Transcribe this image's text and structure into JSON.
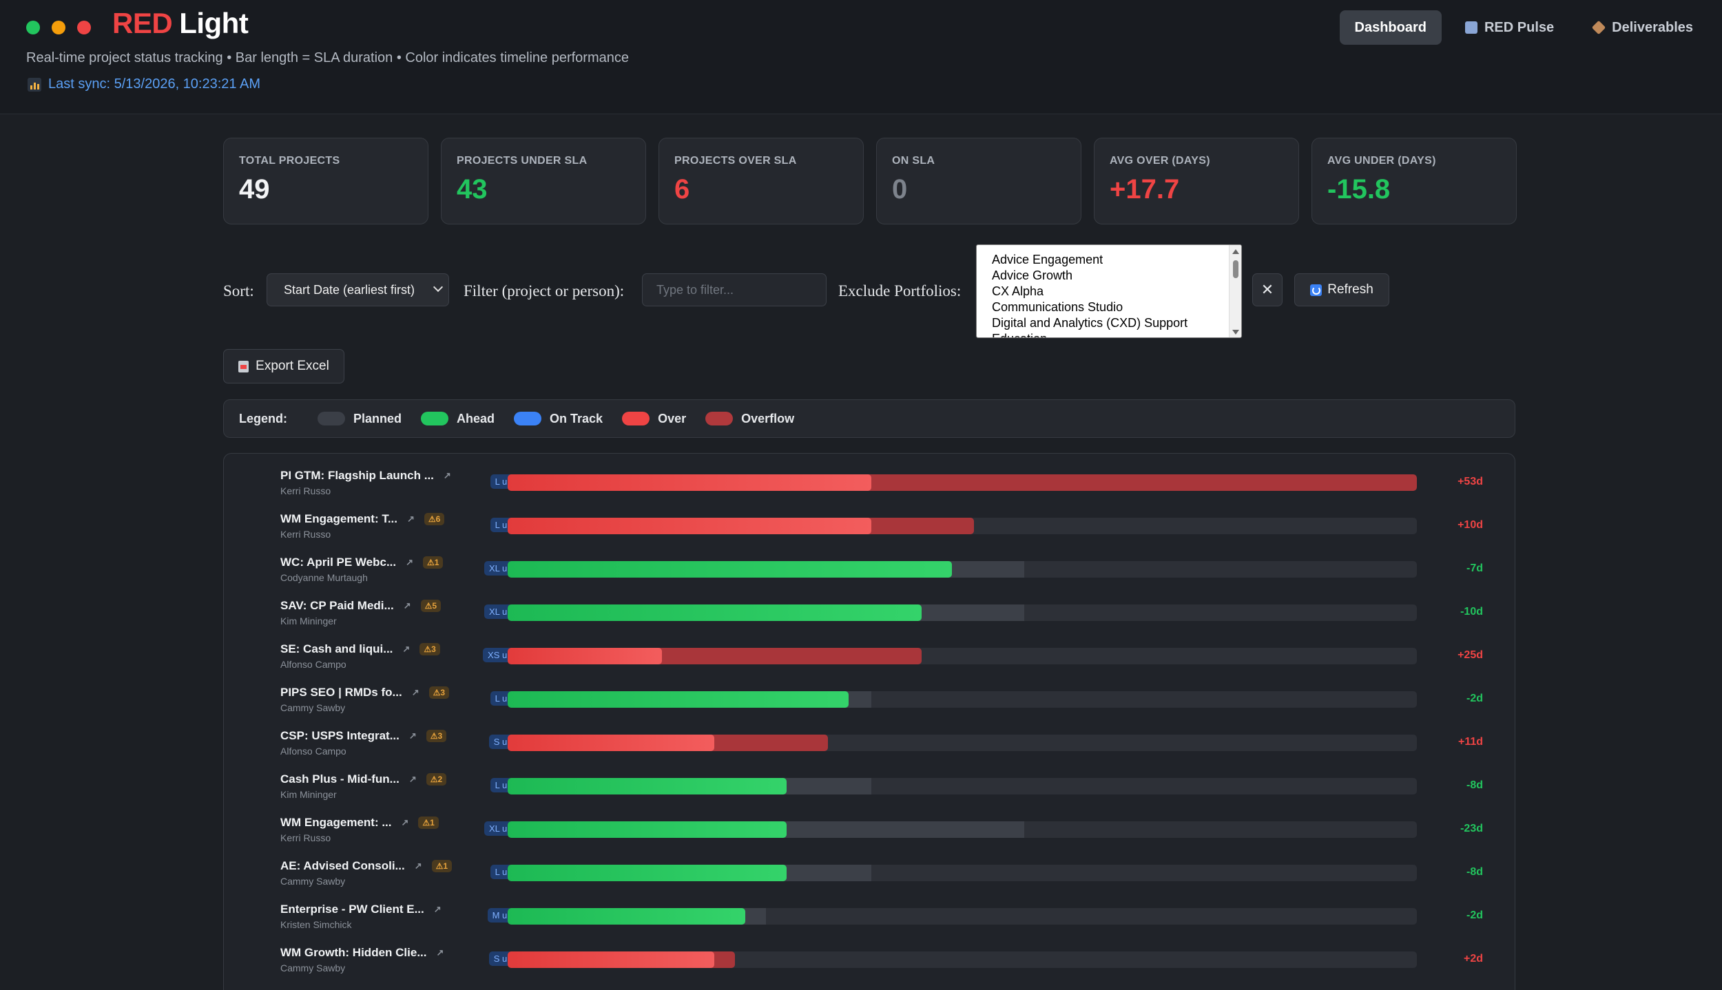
{
  "app": {
    "brand_red": "RED",
    "brand_light": "Light",
    "subtitle": "Real-time project status tracking • Bar length = SLA duration • Color indicates timeline performance",
    "last_sync": "Last sync: 5/13/2026, 10:23:21 AM"
  },
  "nav": {
    "dashboard": "Dashboard",
    "pulse": "RED Pulse",
    "deliverables": "Deliverables"
  },
  "stats": [
    {
      "label": "Total Projects",
      "value": "49",
      "color": "white"
    },
    {
      "label": "Projects Under SLA",
      "value": "43",
      "color": "green"
    },
    {
      "label": "Projects Over SLA",
      "value": "6",
      "color": "red"
    },
    {
      "label": "On SLA",
      "value": "0",
      "color": "gray"
    },
    {
      "label": "Avg Over (Days)",
      "value": "+17.7",
      "color": "red"
    },
    {
      "label": "Avg Under (Days)",
      "value": "-15.8",
      "color": "green"
    }
  ],
  "controls": {
    "sort_label": "Sort:",
    "sort_value": "Start Date (earliest first)",
    "filter_label": "Filter (project or person):",
    "filter_placeholder": "Type to filter...",
    "exclude_label": "Exclude Portfolios:",
    "portfolios": [
      "Advice Engagement",
      "Advice Growth",
      "CX Alpha",
      "Communications Studio",
      "Digital and Analytics (CXD) Support",
      "Education"
    ],
    "clear_label": "✕",
    "refresh_label": "Refresh",
    "export_label": "Export Excel"
  },
  "legend": {
    "title": "Legend:",
    "items": [
      "Planned",
      "Ahead",
      "On Track",
      "Over",
      "Overflow"
    ]
  },
  "colors": {
    "ahead": "#22c55e",
    "on_track": "#3b82f6",
    "over": "#ef4444",
    "overflow": "#b0393c",
    "planned": "#3b3f47"
  },
  "projects": [
    {
      "title": "PI GTM: Flagship Launch ...",
      "person": "Kerri Russo",
      "warn": "",
      "badge": "L updated",
      "status": "over",
      "planned": 0.4,
      "actual": 0.4,
      "overflow": 1.0,
      "delta": "+53d"
    },
    {
      "title": "WM Engagement: T...",
      "person": "Kerri Russo",
      "warn": "⚠6",
      "badge": "L updated",
      "status": "over",
      "planned": 0.4,
      "actual": 0.4,
      "overflow": 0.513,
      "delta": "+10d"
    },
    {
      "title": "WC: April PE Webc...",
      "person": "Codyanne Murtaugh",
      "warn": "⚠1",
      "badge": "XL updated",
      "status": "ahead",
      "planned": 0.568,
      "actual": 0.489,
      "overflow": 0,
      "delta": "-7d"
    },
    {
      "title": "SAV: CP Paid Medi...",
      "person": "Kim Mininger",
      "warn": "⚠5",
      "badge": "XL updated",
      "status": "ahead",
      "planned": 0.568,
      "actual": 0.455,
      "overflow": 0,
      "delta": "-10d"
    },
    {
      "title": "SE: Cash and liqui...",
      "person": "Alfonso Campo",
      "warn": "⚠3",
      "badge": "XS updated",
      "status": "over",
      "planned": 0.17,
      "actual": 0.17,
      "overflow": 0.455,
      "delta": "+25d"
    },
    {
      "title": "PIPS SEO | RMDs fo...",
      "person": "Cammy Sawby",
      "warn": "⚠3",
      "badge": "L updated",
      "status": "ahead",
      "planned": 0.4,
      "actual": 0.375,
      "overflow": 0,
      "delta": "-2d"
    },
    {
      "title": "CSP: USPS Integrat...",
      "person": "Alfonso Campo",
      "warn": "⚠3",
      "badge": "S updated",
      "status": "over",
      "planned": 0.227,
      "actual": 0.227,
      "overflow": 0.352,
      "delta": "+11d"
    },
    {
      "title": "Cash Plus - Mid-fun...",
      "person": "Kim Mininger",
      "warn": "⚠2",
      "badge": "L updated",
      "status": "ahead",
      "planned": 0.4,
      "actual": 0.307,
      "overflow": 0,
      "delta": "-8d"
    },
    {
      "title": "WM Engagement: ...",
      "person": "Kerri Russo",
      "warn": "⚠1",
      "badge": "XL updated",
      "status": "ahead",
      "planned": 0.568,
      "actual": 0.307,
      "overflow": 0,
      "delta": "-23d"
    },
    {
      "title": "AE: Advised Consoli...",
      "person": "Cammy Sawby",
      "warn": "⚠1",
      "badge": "L updated",
      "status": "ahead",
      "planned": 0.4,
      "actual": 0.307,
      "overflow": 0,
      "delta": "-8d"
    },
    {
      "title": "Enterprise - PW Client E...",
      "person": "Kristen Simchick",
      "warn": "",
      "badge": "M updated",
      "status": "ahead",
      "planned": 0.284,
      "actual": 0.261,
      "overflow": 0,
      "delta": "-2d"
    },
    {
      "title": "WM Growth: Hidden Clie...",
      "person": "Cammy Sawby",
      "warn": "",
      "badge": "S updated",
      "status": "over",
      "planned": 0.227,
      "actual": 0.227,
      "overflow": 0.25,
      "delta": "+2d"
    }
  ]
}
